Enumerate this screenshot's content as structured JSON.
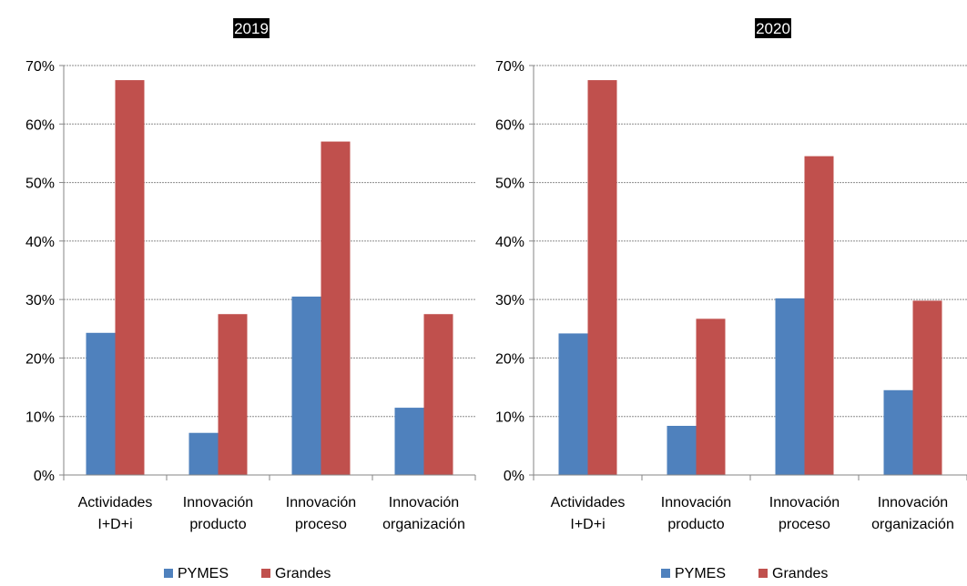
{
  "colors": {
    "pymes": "#4F81BD",
    "grandes": "#C0504D",
    "grid": "#8C8C8C",
    "axis": "#868686",
    "title_bg": "#000000",
    "title_fg": "#FFFFFF"
  },
  "chart_data": [
    {
      "type": "bar",
      "title": "2019",
      "categories": [
        [
          "Actividades",
          "I+D+i"
        ],
        [
          "Innovación",
          "producto"
        ],
        [
          "Innovación",
          "proceso"
        ],
        [
          "Innovación",
          "organización"
        ]
      ],
      "series": [
        {
          "name": "PYMES",
          "values": [
            24.3,
            7.2,
            30.5,
            11.5
          ]
        },
        {
          "name": "Grandes",
          "values": [
            67.5,
            27.5,
            57.0,
            27.5
          ]
        }
      ],
      "ylim": [
        0,
        70
      ],
      "yticks": [
        "0%",
        "10%",
        "20%",
        "30%",
        "40%",
        "50%",
        "60%",
        "70%"
      ],
      "grid": true,
      "legend": "bottom"
    },
    {
      "type": "bar",
      "title": "2020",
      "categories": [
        [
          "Actividades",
          "I+D+i"
        ],
        [
          "Innovación",
          "producto"
        ],
        [
          "Innovación",
          "proceso"
        ],
        [
          "Innovación",
          "organización"
        ]
      ],
      "series": [
        {
          "name": "PYMES",
          "values": [
            24.2,
            8.4,
            30.2,
            14.5
          ]
        },
        {
          "name": "Grandes",
          "values": [
            67.5,
            26.7,
            54.5,
            29.8
          ]
        }
      ],
      "ylim": [
        0,
        70
      ],
      "yticks": [
        "0%",
        "10%",
        "20%",
        "30%",
        "40%",
        "50%",
        "60%",
        "70%"
      ],
      "grid": true,
      "legend": "bottom"
    }
  ]
}
